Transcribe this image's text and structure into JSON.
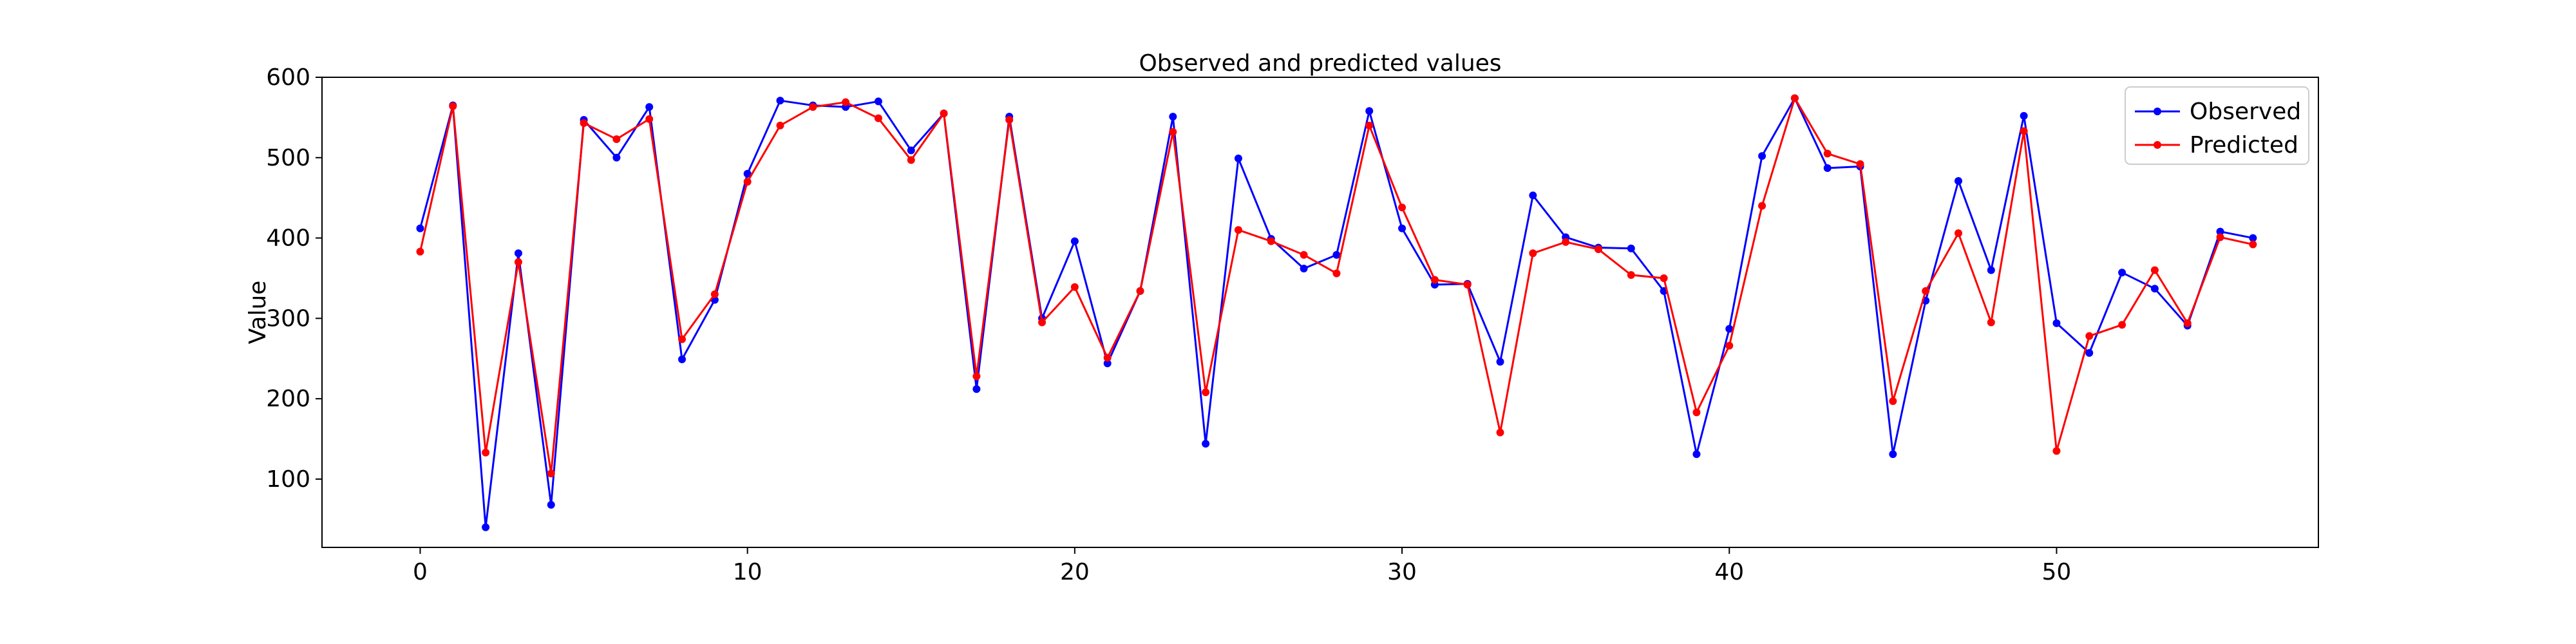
{
  "chart_data": {
    "type": "line",
    "title": "Observed and predicted values",
    "xlabel": "",
    "ylabel": "Value",
    "xlim": [
      -3,
      58
    ],
    "ylim": [
      15,
      600
    ],
    "xticks": [
      0,
      10,
      20,
      30,
      40,
      50
    ],
    "yticks": [
      100,
      200,
      300,
      400,
      500,
      600
    ],
    "grid": false,
    "legend_position": "top-right",
    "x": [
      0,
      1,
      2,
      3,
      4,
      5,
      6,
      7,
      8,
      9,
      10,
      11,
      12,
      13,
      14,
      15,
      16,
      17,
      18,
      19,
      20,
      21,
      22,
      23,
      24,
      25,
      26,
      27,
      28,
      29,
      30,
      31,
      32,
      33,
      34,
      35,
      36,
      37,
      38,
      39,
      40,
      41,
      42,
      43,
      44,
      45,
      46,
      47,
      48,
      49,
      50,
      51,
      52,
      53,
      54,
      55,
      56
    ],
    "series": [
      {
        "name": "Observed",
        "color": "#0000ff",
        "values": [
          412,
          565,
          40,
          381,
          68,
          547,
          500,
          563,
          249,
          323,
          480,
          571,
          565,
          563,
          570,
          509,
          555,
          212,
          551,
          300,
          396,
          244,
          334,
          551,
          144,
          499,
          399,
          362,
          379,
          558,
          412,
          342,
          343,
          246,
          453,
          401,
          388,
          387,
          334,
          131,
          287,
          502,
          574,
          487,
          489,
          131,
          322,
          471,
          360,
          552,
          294,
          257,
          357,
          337,
          291,
          408,
          400
        ]
      },
      {
        "name": "Predicted",
        "color": "#ff0000",
        "values": [
          383,
          564,
          133,
          370,
          107,
          543,
          523,
          548,
          274,
          330,
          470,
          540,
          563,
          569,
          549,
          497,
          555,
          228,
          547,
          295,
          339,
          251,
          334,
          532,
          208,
          410,
          396,
          379,
          356,
          540,
          438,
          348,
          342,
          158,
          381,
          395,
          386,
          354,
          350,
          183,
          266,
          440,
          574,
          505,
          492,
          197,
          334,
          406,
          295,
          533,
          135,
          278,
          292,
          360,
          294,
          401,
          392
        ]
      }
    ]
  }
}
